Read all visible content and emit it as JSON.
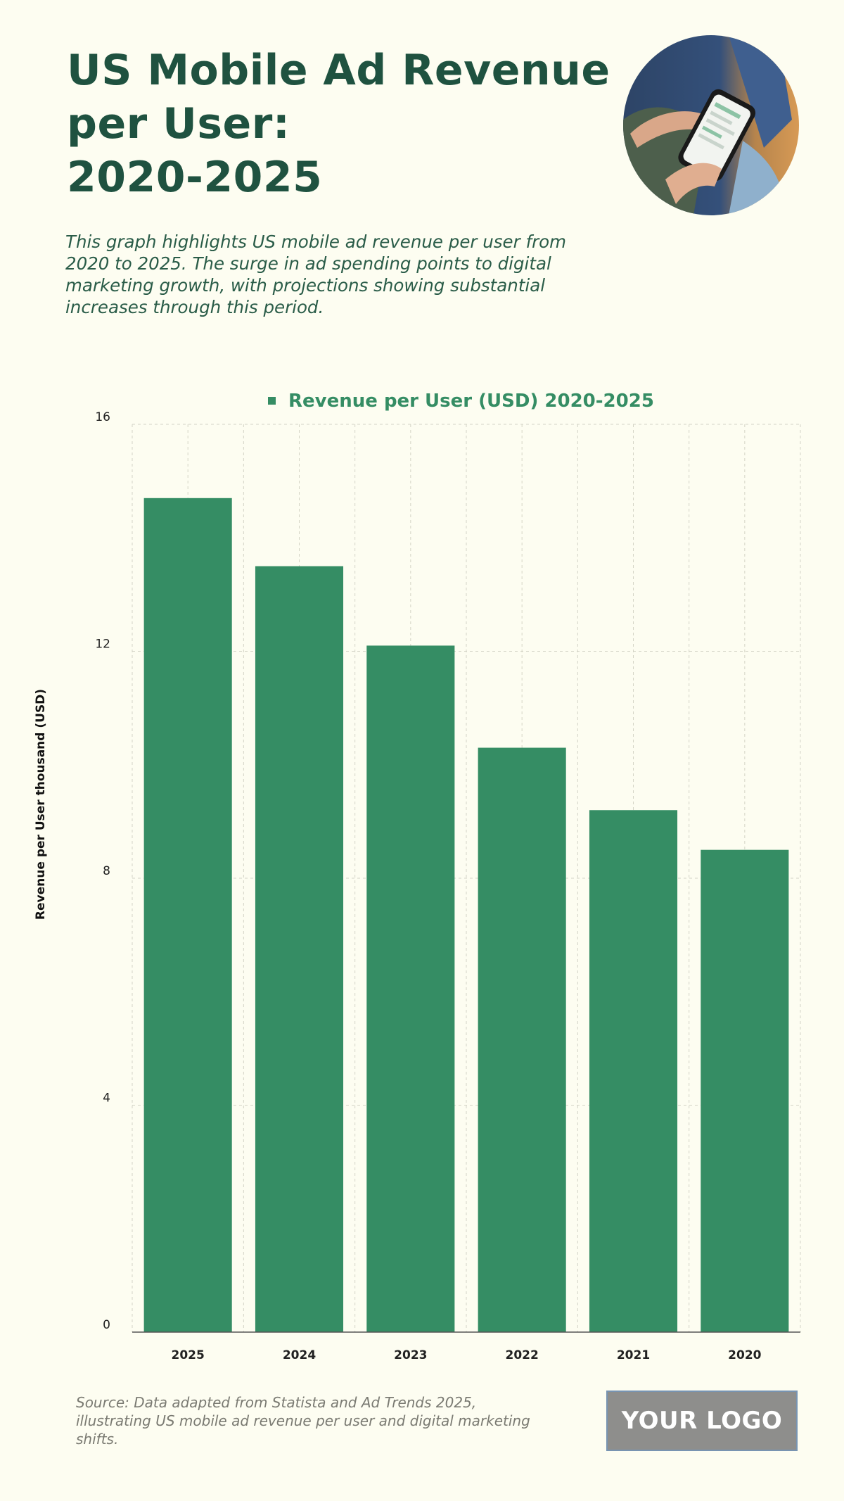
{
  "header": {
    "title_lines": [
      "US Mobile Ad Revenue",
      "per User:",
      "2020-2025"
    ],
    "subtitle": "This graph highlights US mobile ad revenue per user from 2020 to 2025. The surge in ad spending points to digital marketing growth, with projections showing substantial increases through this period."
  },
  "footer": {
    "source": "Source: Data adapted from Statista and Ad Trends 2025, illustrating US mobile ad revenue per user and digital marketing shifts.",
    "logo": "YOUR LOGO"
  },
  "colors": {
    "bar": "#358d64",
    "title": "#1f5240",
    "legend_text": "#358d64",
    "grid": "#d4d4c6",
    "background": "#fdfdf1"
  },
  "chart_data": {
    "type": "bar",
    "legend": [
      "Revenue per User (USD) 2020-2025"
    ],
    "categories": [
      "2025",
      "2024",
      "2023",
      "2022",
      "2021",
      "2020"
    ],
    "series": [
      {
        "name": "Revenue per User (USD) 2020-2025",
        "values": [
          14.7,
          13.5,
          12.1,
          10.3,
          9.2,
          8.5
        ]
      }
    ],
    "ylabel": "Revenue per User thousand (USD)",
    "xlabel": "",
    "ylim": [
      0,
      16
    ],
    "yticks": [
      0,
      4,
      8,
      12,
      16
    ],
    "grid": true,
    "legend_position": "top-center"
  }
}
